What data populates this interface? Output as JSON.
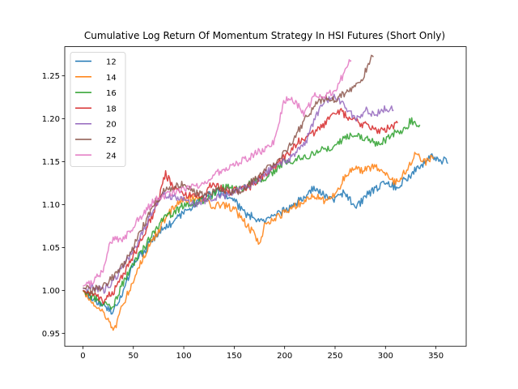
{
  "chart_data": {
    "type": "line",
    "title": "Cumulative Log Return Of Momentum Strategy In HSI Futures (Short Only)",
    "xlabel": "",
    "ylabel": "",
    "xlim": [
      -18,
      380
    ],
    "ylim": [
      0.935,
      1.284
    ],
    "xticks": [
      0,
      50,
      100,
      150,
      200,
      250,
      300,
      350
    ],
    "yticks": [
      0.95,
      1.0,
      1.05,
      1.1,
      1.15,
      1.2,
      1.25
    ],
    "ytick_labels": [
      "0.95",
      "1.00",
      "1.05",
      "1.10",
      "1.15",
      "1.20",
      "1.25"
    ],
    "grid": false,
    "legend_position": "top-left",
    "series": [
      {
        "name": "12",
        "color": "#1f77b4",
        "points": [
          [
            0,
            1.0
          ],
          [
            10,
            0.99
          ],
          [
            20,
            0.982
          ],
          [
            30,
            0.975
          ],
          [
            38,
            0.992
          ],
          [
            50,
            1.032
          ],
          [
            60,
            1.045
          ],
          [
            75,
            1.068
          ],
          [
            90,
            1.08
          ],
          [
            100,
            1.09
          ],
          [
            110,
            1.1
          ],
          [
            120,
            1.108
          ],
          [
            130,
            1.115
          ],
          [
            140,
            1.112
          ],
          [
            150,
            1.105
          ],
          [
            160,
            1.09
          ],
          [
            170,
            1.085
          ],
          [
            180,
            1.08
          ],
          [
            190,
            1.087
          ],
          [
            200,
            1.093
          ],
          [
            210,
            1.1
          ],
          [
            220,
            1.11
          ],
          [
            230,
            1.12
          ],
          [
            240,
            1.11
          ],
          [
            250,
            1.105
          ],
          [
            260,
            1.115
          ],
          [
            270,
            1.095
          ],
          [
            280,
            1.11
          ],
          [
            290,
            1.118
          ],
          [
            300,
            1.128
          ],
          [
            310,
            1.12
          ],
          [
            320,
            1.13
          ],
          [
            330,
            1.14
          ],
          [
            340,
            1.15
          ],
          [
            346,
            1.16
          ],
          [
            352,
            1.15
          ],
          [
            358,
            1.152
          ],
          [
            362,
            1.148
          ]
        ]
      },
      {
        "name": "14",
        "color": "#ff7f0e",
        "points": [
          [
            0,
            1.0
          ],
          [
            10,
            0.985
          ],
          [
            20,
            0.975
          ],
          [
            28,
            0.96
          ],
          [
            32,
            0.955
          ],
          [
            40,
            0.985
          ],
          [
            50,
            1.01
          ],
          [
            60,
            1.04
          ],
          [
            70,
            1.06
          ],
          [
            80,
            1.08
          ],
          [
            90,
            1.098
          ],
          [
            100,
            1.105
          ],
          [
            110,
            1.108
          ],
          [
            120,
            1.105
          ],
          [
            130,
            1.098
          ],
          [
            140,
            1.1
          ],
          [
            150,
            1.095
          ],
          [
            160,
            1.08
          ],
          [
            170,
            1.065
          ],
          [
            175,
            1.055
          ],
          [
            180,
            1.075
          ],
          [
            190,
            1.085
          ],
          [
            200,
            1.09
          ],
          [
            210,
            1.098
          ],
          [
            220,
            1.105
          ],
          [
            230,
            1.11
          ],
          [
            240,
            1.105
          ],
          [
            250,
            1.11
          ],
          [
            255,
            1.12
          ],
          [
            260,
            1.135
          ],
          [
            270,
            1.142
          ],
          [
            280,
            1.14
          ],
          [
            290,
            1.145
          ],
          [
            300,
            1.138
          ],
          [
            310,
            1.125
          ],
          [
            320,
            1.14
          ],
          [
            325,
            1.15
          ],
          [
            330,
            1.158
          ],
          [
            340,
            1.15
          ],
          [
            348,
            1.155
          ]
        ]
      },
      {
        "name": "16",
        "color": "#2ca02c",
        "points": [
          [
            0,
            1.0
          ],
          [
            10,
            0.992
          ],
          [
            20,
            0.985
          ],
          [
            30,
            0.98
          ],
          [
            38,
            1.005
          ],
          [
            50,
            1.03
          ],
          [
            60,
            1.048
          ],
          [
            70,
            1.068
          ],
          [
            80,
            1.085
          ],
          [
            90,
            1.09
          ],
          [
            100,
            1.1
          ],
          [
            110,
            1.102
          ],
          [
            120,
            1.105
          ],
          [
            130,
            1.112
          ],
          [
            140,
            1.122
          ],
          [
            150,
            1.118
          ],
          [
            160,
            1.12
          ],
          [
            170,
            1.128
          ],
          [
            180,
            1.13
          ],
          [
            190,
            1.14
          ],
          [
            200,
            1.15
          ],
          [
            210,
            1.152
          ],
          [
            220,
            1.155
          ],
          [
            230,
            1.16
          ],
          [
            240,
            1.165
          ],
          [
            250,
            1.168
          ],
          [
            260,
            1.178
          ],
          [
            270,
            1.183
          ],
          [
            280,
            1.178
          ],
          [
            290,
            1.172
          ],
          [
            300,
            1.175
          ],
          [
            310,
            1.185
          ],
          [
            320,
            1.188
          ],
          [
            326,
            1.2
          ],
          [
            330,
            1.19
          ],
          [
            334,
            1.193
          ]
        ]
      },
      {
        "name": "18",
        "color": "#d62728",
        "points": [
          [
            0,
            1.0
          ],
          [
            10,
            0.996
          ],
          [
            20,
            0.988
          ],
          [
            30,
            0.998
          ],
          [
            40,
            1.018
          ],
          [
            50,
            1.04
          ],
          [
            60,
            1.065
          ],
          [
            70,
            1.09
          ],
          [
            82,
            1.135
          ],
          [
            90,
            1.12
          ],
          [
            100,
            1.11
          ],
          [
            110,
            1.112
          ],
          [
            120,
            1.108
          ],
          [
            128,
            1.125
          ],
          [
            135,
            1.12
          ],
          [
            145,
            1.115
          ],
          [
            155,
            1.118
          ],
          [
            165,
            1.12
          ],
          [
            175,
            1.13
          ],
          [
            185,
            1.14
          ],
          [
            195,
            1.15
          ],
          [
            205,
            1.16
          ],
          [
            215,
            1.175
          ],
          [
            225,
            1.18
          ],
          [
            235,
            1.19
          ],
          [
            245,
            1.2
          ],
          [
            255,
            1.21
          ],
          [
            265,
            1.198
          ],
          [
            275,
            1.195
          ],
          [
            285,
            1.19
          ],
          [
            295,
            1.185
          ],
          [
            305,
            1.19
          ],
          [
            312,
            1.195
          ]
        ]
      },
      {
        "name": "20",
        "color": "#9467bd",
        "points": [
          [
            0,
            1.002
          ],
          [
            10,
            1.004
          ],
          [
            20,
            1.0
          ],
          [
            30,
            1.01
          ],
          [
            40,
            1.03
          ],
          [
            50,
            1.045
          ],
          [
            60,
            1.07
          ],
          [
            70,
            1.095
          ],
          [
            80,
            1.112
          ],
          [
            90,
            1.108
          ],
          [
            100,
            1.105
          ],
          [
            110,
            1.1
          ],
          [
            120,
            1.105
          ],
          [
            130,
            1.108
          ],
          [
            140,
            1.11
          ],
          [
            150,
            1.115
          ],
          [
            160,
            1.12
          ],
          [
            170,
            1.125
          ],
          [
            180,
            1.135
          ],
          [
            190,
            1.145
          ],
          [
            200,
            1.15
          ],
          [
            210,
            1.158
          ],
          [
            220,
            1.17
          ],
          [
            230,
            1.2
          ],
          [
            240,
            1.22
          ],
          [
            250,
            1.225
          ],
          [
            260,
            1.215
          ],
          [
            270,
            1.2
          ],
          [
            280,
            1.21
          ],
          [
            290,
            1.205
          ],
          [
            300,
            1.212
          ],
          [
            308,
            1.21
          ]
        ]
      },
      {
        "name": "22",
        "color": "#8c564b",
        "points": [
          [
            0,
            1.003
          ],
          [
            10,
            1.0
          ],
          [
            20,
            1.005
          ],
          [
            30,
            1.015
          ],
          [
            40,
            1.03
          ],
          [
            50,
            1.05
          ],
          [
            60,
            1.075
          ],
          [
            70,
            1.1
          ],
          [
            80,
            1.115
          ],
          [
            90,
            1.12
          ],
          [
            100,
            1.125
          ],
          [
            110,
            1.115
          ],
          [
            120,
            1.11
          ],
          [
            130,
            1.115
          ],
          [
            140,
            1.118
          ],
          [
            150,
            1.115
          ],
          [
            160,
            1.118
          ],
          [
            170,
            1.13
          ],
          [
            180,
            1.14
          ],
          [
            190,
            1.15
          ],
          [
            200,
            1.16
          ],
          [
            210,
            1.178
          ],
          [
            220,
            1.2
          ],
          [
            230,
            1.215
          ],
          [
            240,
            1.225
          ],
          [
            250,
            1.222
          ],
          [
            260,
            1.23
          ],
          [
            270,
            1.24
          ],
          [
            278,
            1.25
          ],
          [
            282,
            1.26
          ],
          [
            285,
            1.27
          ],
          [
            288,
            1.272
          ]
        ]
      },
      {
        "name": "24",
        "color": "#e377c2",
        "points": [
          [
            0,
            1.005
          ],
          [
            10,
            1.01
          ],
          [
            20,
            1.022
          ],
          [
            25,
            1.05
          ],
          [
            30,
            1.06
          ],
          [
            40,
            1.06
          ],
          [
            50,
            1.075
          ],
          [
            60,
            1.09
          ],
          [
            70,
            1.105
          ],
          [
            80,
            1.11
          ],
          [
            90,
            1.115
          ],
          [
            100,
            1.118
          ],
          [
            110,
            1.122
          ],
          [
            120,
            1.125
          ],
          [
            130,
            1.135
          ],
          [
            140,
            1.142
          ],
          [
            150,
            1.148
          ],
          [
            160,
            1.152
          ],
          [
            170,
            1.158
          ],
          [
            180,
            1.165
          ],
          [
            190,
            1.175
          ],
          [
            195,
            1.2
          ],
          [
            200,
            1.222
          ],
          [
            210,
            1.22
          ],
          [
            220,
            1.205
          ],
          [
            230,
            1.23
          ],
          [
            240,
            1.225
          ],
          [
            250,
            1.235
          ],
          [
            258,
            1.25
          ],
          [
            262,
            1.262
          ],
          [
            266,
            1.268
          ]
        ]
      }
    ]
  }
}
